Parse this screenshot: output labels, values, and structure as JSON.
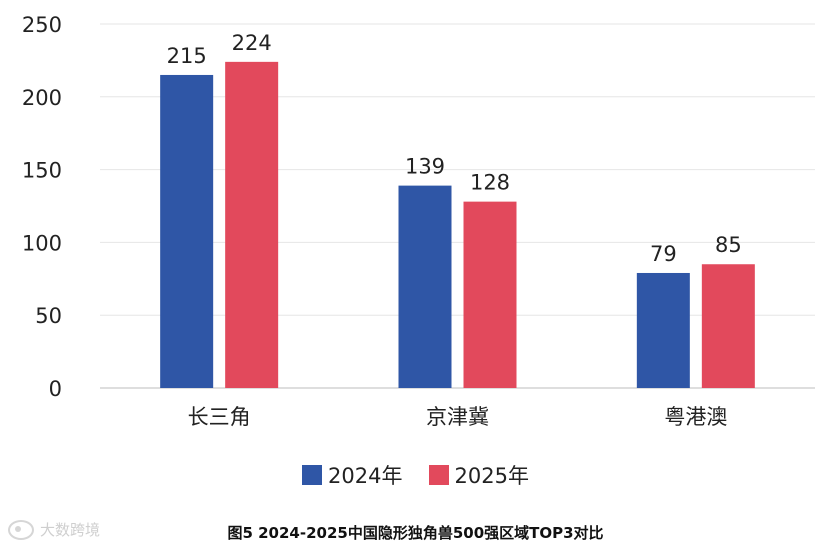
{
  "chart_data": {
    "type": "bar",
    "categories": [
      "长三角",
      "京津冀",
      "粤港澳"
    ],
    "series": [
      {
        "name": "2024年",
        "values": [
          215,
          139,
          79
        ],
        "color": "#2f56a6"
      },
      {
        "name": "2025年",
        "values": [
          224,
          128,
          85
        ],
        "color": "#e2495c"
      }
    ],
    "ylim": [
      0,
      250
    ],
    "yticks": [
      0,
      50,
      100,
      150,
      200,
      250
    ],
    "grid": true,
    "legend_position": "bottom",
    "data_labels": true,
    "caption": "图5 2024-2025中国隐形独角兽500强区域TOP3对比"
  },
  "watermark": {
    "text": "大数跨境"
  }
}
